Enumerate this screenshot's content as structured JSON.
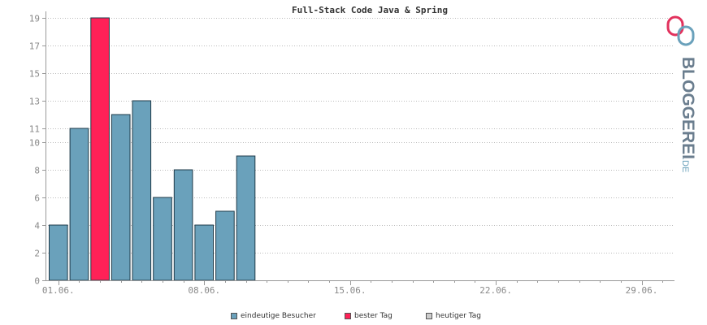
{
  "chart_data": {
    "type": "bar",
    "title": "Full-Stack Code Java & Spring",
    "ylim": [
      0,
      19
    ],
    "y_ticks": [
      "0",
      "2",
      "4",
      "6",
      "8",
      "10",
      "11",
      "13",
      "15",
      "17",
      "19"
    ],
    "x_tick_labels": [
      "01.06.",
      "08.06.",
      "15.06.",
      "22.06.",
      "29.06."
    ],
    "x_tick_days": [
      1,
      8,
      15,
      22,
      29
    ],
    "x_range_days": [
      1,
      30
    ],
    "grid": true,
    "legend_position": "bottom",
    "series": [
      {
        "name": "eindeutige Besucher",
        "days": [
          1,
          2,
          3,
          4,
          5,
          6,
          7,
          8,
          9,
          10
        ],
        "values": [
          4,
          11,
          19,
          12,
          13,
          6,
          8,
          4,
          5,
          9
        ]
      }
    ],
    "best_day_index": 2
  },
  "legend": [
    {
      "label": "eindeutige Besucher",
      "color": "#6aa1bb"
    },
    {
      "label": "bester Tag",
      "color": "#ff2157"
    },
    {
      "label": "heutiger Tag",
      "color": "#cccccc"
    }
  ],
  "colors": {
    "bar": "#6aa1bb",
    "best": "#ff2157",
    "today": "#cccccc",
    "axis": "#999999",
    "grid": "#bbbbbb"
  },
  "logo": {
    "text": "BLOGGEREI",
    "suffix": ".DE"
  }
}
